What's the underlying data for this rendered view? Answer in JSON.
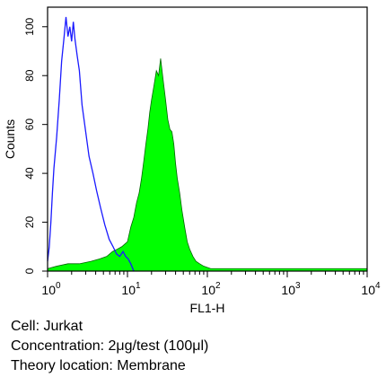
{
  "chart_data": {
    "type": "area",
    "xlabel": "FL1-H",
    "ylabel": "Counts",
    "x_scale": "log",
    "xlim": [
      1,
      10000
    ],
    "ylim": [
      0,
      108
    ],
    "grid": false,
    "legend": "none",
    "x_ticks": [
      {
        "value": 1,
        "base": "10",
        "exp": "0"
      },
      {
        "value": 10,
        "base": "10",
        "exp": "1"
      },
      {
        "value": 100,
        "base": "10",
        "exp": "2"
      },
      {
        "value": 1000,
        "base": "10",
        "exp": "3"
      },
      {
        "value": 10000,
        "base": "10",
        "exp": "4"
      }
    ],
    "y_ticks": [
      "0",
      "20",
      "40",
      "60",
      "80",
      "100"
    ],
    "series": [
      {
        "role": "control",
        "style": "outline",
        "color": "#1a1aff",
        "x": [
          1.0,
          1.05,
          1.1,
          1.15,
          1.2,
          1.3,
          1.4,
          1.5,
          1.6,
          1.7,
          1.8,
          1.9,
          2.0,
          2.1,
          2.2,
          2.35,
          2.5,
          2.7,
          3.0,
          3.3,
          3.7,
          4.1,
          4.6,
          5.2,
          5.9,
          6.6,
          7.3,
          8.0,
          8.8,
          9.5,
          10.2,
          11.0,
          12.0
        ],
        "y": [
          4,
          10,
          20,
          32,
          42,
          55,
          70,
          86,
          95,
          104,
          96,
          100,
          94,
          102,
          95,
          88,
          82,
          68,
          57,
          47,
          40,
          33,
          26,
          19,
          13,
          10,
          7,
          6,
          8,
          6,
          5,
          3,
          0
        ]
      },
      {
        "role": "stained",
        "style": "filled",
        "color": "#00ff00",
        "x": [
          1.0,
          1.3,
          1.8,
          2.5,
          3.5,
          4.5,
          5.5,
          6.5,
          7.5,
          8.5,
          10.0,
          11.0,
          12.0,
          13.0,
          14.0,
          15.0,
          16.0,
          17.0,
          18.0,
          19.0,
          20.0,
          21.5,
          23.0,
          24.5,
          26.0,
          28.0,
          30.0,
          32.0,
          34.0,
          36.0,
          38.0,
          40.0,
          42.0,
          45.0,
          48.0,
          52.0,
          56.0,
          60.0,
          66.0,
          72.0,
          80.0,
          90.0,
          110.0,
          150.0,
          300.0,
          1000.0,
          3000.0,
          10000.0
        ],
        "y": [
          1,
          2,
          3,
          3,
          4,
          5,
          6,
          8,
          9,
          10,
          12,
          18,
          22,
          28,
          32,
          38,
          45,
          52,
          58,
          65,
          70,
          76,
          82,
          80,
          87,
          78,
          70,
          62,
          58,
          57,
          52,
          44,
          38,
          32,
          25,
          18,
          12,
          9,
          6,
          4,
          3,
          2,
          1,
          1,
          1,
          1,
          1,
          1
        ]
      }
    ]
  },
  "caption": {
    "cell": "Cell: Jurkat",
    "concentration": "Concentration: 2μg/test (100μl)",
    "location": "Theory location: Membrane"
  }
}
